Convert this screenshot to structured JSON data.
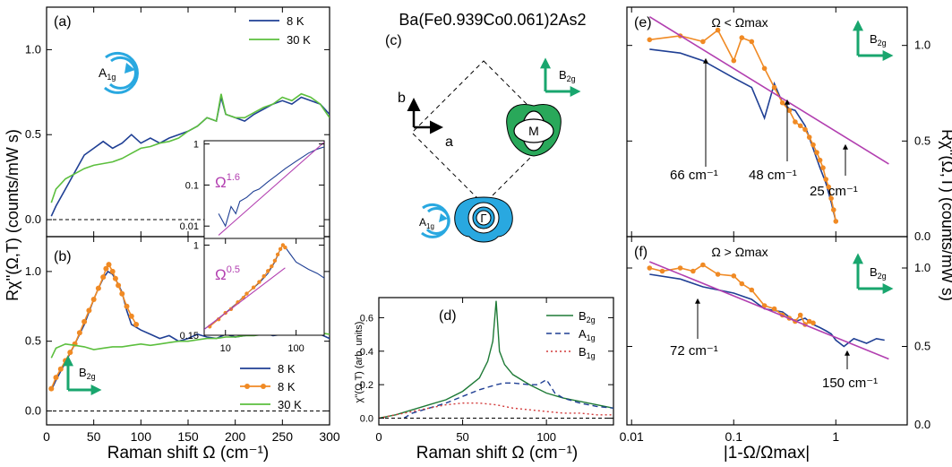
{
  "figure": {
    "compound": "Ba(Fe0.939Co0.061)2As2",
    "xlabel_left": "Raman shift Ω (cm⁻¹)",
    "xlabel_mid": "Raman shift Ω (cm⁻¹)",
    "xlabel_right": "|1-Ω/Ωmax|",
    "ylabel_left": "Rχ''(Ω,T) (counts/mW s)",
    "ylabel_right": "Rχ''(Ω,T) (counts/mW s)",
    "ylabel_d": "χ''(Ω,T) (arb. units)",
    "panel_labels": {
      "a": "(a)",
      "b": "(b)",
      "c": "(c)",
      "d": "(d)",
      "e": "(e)",
      "f": "(f)"
    },
    "sym": {
      "A1g": "A1g",
      "B2g": "B2g",
      "B1g": "B1g"
    },
    "lattice": {
      "a": "a",
      "b": "b",
      "Gamma": "Γ",
      "M": "M"
    },
    "inset_powers": {
      "upper": "Ω^1.6",
      "lower": "Ω^0.5"
    },
    "panel_e_condition": "Ω < Ωmax",
    "panel_f_condition": "Ω > Ωmax",
    "annotations_e": [
      "66 cm⁻¹",
      "48 cm⁻¹",
      "25 cm⁻¹"
    ],
    "annotations_f": [
      "72 cm⁻¹",
      "150 cm⁻¹"
    ]
  },
  "colors": {
    "blue": "#1f3f94",
    "green": "#5cbf3e",
    "orange": "#f08a24",
    "magenta": "#b23fb0",
    "teal": "#19a66e",
    "cyan": "#29a8e0",
    "dgreen": "#1e7a36",
    "red": "#d23a3a"
  },
  "chart_data": [
    {
      "id": "a",
      "type": "line",
      "xlim": [
        0,
        300
      ],
      "ylim": [
        -0.1,
        1.25
      ],
      "yticks": [
        0.0,
        0.5,
        1.0
      ],
      "series": [
        {
          "name": "8 K",
          "color": "blue",
          "x": [
            5,
            10,
            20,
            30,
            40,
            50,
            60,
            70,
            80,
            90,
            100,
            110,
            120,
            130,
            140,
            150,
            160,
            170,
            180,
            185,
            190,
            200,
            210,
            220,
            230,
            240,
            250,
            260,
            270,
            280,
            290,
            300
          ],
          "y": [
            0.02,
            0.08,
            0.18,
            0.28,
            0.38,
            0.42,
            0.46,
            0.42,
            0.45,
            0.5,
            0.45,
            0.48,
            0.45,
            0.48,
            0.5,
            0.52,
            0.55,
            0.6,
            0.58,
            0.72,
            0.62,
            0.6,
            0.58,
            0.62,
            0.65,
            0.68,
            0.7,
            0.68,
            0.72,
            0.7,
            0.68,
            0.62
          ]
        },
        {
          "name": "30 K",
          "color": "green",
          "x": [
            5,
            10,
            20,
            30,
            40,
            50,
            60,
            70,
            80,
            90,
            100,
            110,
            120,
            130,
            140,
            150,
            160,
            170,
            180,
            185,
            190,
            200,
            210,
            220,
            230,
            240,
            250,
            260,
            270,
            280,
            290,
            300
          ],
          "y": [
            0.1,
            0.18,
            0.24,
            0.27,
            0.3,
            0.32,
            0.33,
            0.34,
            0.36,
            0.39,
            0.42,
            0.43,
            0.45,
            0.46,
            0.48,
            0.52,
            0.55,
            0.6,
            0.58,
            0.74,
            0.62,
            0.6,
            0.6,
            0.63,
            0.66,
            0.68,
            0.72,
            0.7,
            0.74,
            0.72,
            0.68,
            0.6
          ]
        }
      ]
    },
    {
      "id": "b",
      "type": "line",
      "xlim": [
        0,
        300
      ],
      "ylim": [
        -0.1,
        1.25
      ],
      "xticks": [
        0,
        50,
        100,
        150,
        200,
        250,
        300
      ],
      "yticks": [
        0.0,
        0.5,
        1.0
      ],
      "series": [
        {
          "name": "8 K",
          "color": "blue",
          "x": [
            5,
            10,
            20,
            30,
            40,
            50,
            55,
            60,
            65,
            70,
            75,
            80,
            85,
            90,
            100,
            110,
            120,
            130,
            140,
            150,
            160,
            170,
            180,
            190,
            200,
            210,
            220,
            230,
            240,
            250,
            260,
            270,
            280,
            290,
            300
          ],
          "y": [
            0.15,
            0.22,
            0.35,
            0.48,
            0.62,
            0.8,
            0.88,
            0.95,
            1.0,
            0.98,
            0.92,
            0.85,
            0.72,
            0.62,
            0.58,
            0.55,
            0.52,
            0.54,
            0.5,
            0.52,
            0.55,
            0.53,
            0.52,
            0.55,
            0.53,
            0.54,
            0.55,
            0.56,
            0.54,
            0.55,
            0.56,
            0.58,
            0.56,
            0.55,
            0.52
          ]
        },
        {
          "name": "8 K",
          "color": "orange",
          "markers": true,
          "x": [
            5,
            10,
            15,
            20,
            25,
            30,
            35,
            40,
            45,
            50,
            55,
            60,
            63,
            66,
            70,
            73,
            76,
            80,
            85,
            90,
            95
          ],
          "y": [
            0.16,
            0.24,
            0.3,
            0.36,
            0.42,
            0.48,
            0.56,
            0.64,
            0.72,
            0.8,
            0.88,
            0.96,
            1.02,
            1.05,
            1.0,
            0.95,
            0.9,
            0.84,
            0.75,
            0.68,
            0.62
          ]
        },
        {
          "name": "30 K",
          "color": "green",
          "x": [
            5,
            10,
            20,
            30,
            40,
            50,
            60,
            70,
            80,
            90,
            100,
            110,
            120,
            130,
            140,
            150,
            160,
            170,
            180,
            190,
            200,
            210,
            220,
            230,
            240,
            250,
            260,
            270,
            280,
            290,
            300
          ],
          "y": [
            0.38,
            0.45,
            0.48,
            0.47,
            0.46,
            0.44,
            0.45,
            0.46,
            0.46,
            0.47,
            0.48,
            0.47,
            0.48,
            0.49,
            0.5,
            0.5,
            0.51,
            0.52,
            0.52,
            0.53,
            0.53,
            0.54,
            0.54,
            0.55,
            0.55,
            0.56,
            0.56,
            0.58,
            0.57,
            0.56,
            0.55
          ]
        }
      ]
    },
    {
      "id": "d",
      "type": "line",
      "xlim": [
        0,
        140
      ],
      "ylim": [
        -0.04,
        0.72
      ],
      "xticks": [
        0,
        50,
        100
      ],
      "yticks": [
        0.0,
        0.2,
        0.4,
        0.6
      ],
      "series": [
        {
          "name": "B2g",
          "color": "dgreen",
          "x": [
            0,
            10,
            20,
            30,
            40,
            50,
            60,
            65,
            68,
            70,
            72,
            75,
            80,
            90,
            100,
            110,
            120,
            130,
            140
          ],
          "y": [
            0.0,
            0.02,
            0.05,
            0.08,
            0.11,
            0.16,
            0.24,
            0.34,
            0.46,
            0.7,
            0.4,
            0.32,
            0.26,
            0.2,
            0.15,
            0.12,
            0.1,
            0.08,
            0.06
          ]
        },
        {
          "name": "A1g",
          "color": "blue",
          "dash": true,
          "x": [
            15,
            20,
            30,
            40,
            50,
            60,
            70,
            75,
            80,
            90,
            95,
            100,
            102,
            105,
            110,
            120,
            130,
            140
          ],
          "y": [
            0.0,
            0.03,
            0.06,
            0.09,
            0.13,
            0.17,
            0.2,
            0.21,
            0.21,
            0.2,
            0.2,
            0.23,
            0.2,
            0.15,
            0.12,
            0.09,
            0.07,
            0.06
          ]
        },
        {
          "name": "B1g",
          "color": "red",
          "dot": true,
          "x": [
            0,
            10,
            20,
            30,
            40,
            50,
            60,
            70,
            80,
            90,
            100,
            110,
            120,
            130,
            140
          ],
          "y": [
            0.0,
            0.02,
            0.04,
            0.06,
            0.08,
            0.09,
            0.09,
            0.08,
            0.06,
            0.05,
            0.04,
            0.03,
            0.03,
            0.02,
            0.02
          ]
        }
      ]
    },
    {
      "id": "e",
      "type": "line",
      "xscale": "log",
      "xlim": [
        0.009,
        5
      ],
      "ylim": [
        0,
        1.2
      ],
      "yticks": [
        0.0,
        0.5,
        1.0
      ],
      "series": [
        {
          "name": "blue",
          "color": "blue",
          "x": [
            0.015,
            0.03,
            0.05,
            0.1,
            0.15,
            0.2,
            0.25,
            0.3,
            0.35,
            0.4,
            0.5,
            0.6,
            0.7,
            0.8,
            0.9,
            1.0
          ],
          "y": [
            0.98,
            0.96,
            0.92,
            0.83,
            0.78,
            0.62,
            0.8,
            0.7,
            0.67,
            0.66,
            0.58,
            0.46,
            0.36,
            0.28,
            0.18,
            0.08
          ]
        },
        {
          "name": "orange",
          "color": "orange",
          "markers": true,
          "x": [
            0.015,
            0.03,
            0.05,
            0.07,
            0.1,
            0.12,
            0.15,
            0.2,
            0.25,
            0.3,
            0.35,
            0.4,
            0.45,
            0.5,
            0.55,
            0.6,
            0.65,
            0.7,
            0.75,
            0.8,
            0.85,
            0.9,
            0.95,
            1.0
          ],
          "y": [
            1.03,
            1.05,
            1.02,
            1.08,
            0.92,
            1.04,
            1.02,
            0.88,
            0.78,
            0.7,
            0.66,
            0.6,
            0.58,
            0.56,
            0.52,
            0.48,
            0.44,
            0.4,
            0.36,
            0.3,
            0.26,
            0.2,
            0.14,
            0.08
          ]
        },
        {
          "name": "fit",
          "color": "magenta",
          "x": [
            0.015,
            3.3
          ],
          "y": [
            1.15,
            0.38
          ]
        }
      ]
    },
    {
      "id": "f",
      "type": "line",
      "xscale": "log",
      "xlim": [
        0.009,
        5
      ],
      "ylim": [
        0,
        1.2
      ],
      "xticks": [
        0.01,
        0.1,
        1
      ],
      "yticks": [
        0.5,
        1.0
      ],
      "series": [
        {
          "name": "blue",
          "color": "blue",
          "x": [
            0.015,
            0.03,
            0.05,
            0.1,
            0.15,
            0.2,
            0.3,
            0.4,
            0.5,
            0.6,
            0.7,
            0.8,
            0.9,
            1.0,
            1.2,
            1.5,
            2,
            2.5,
            3.0
          ],
          "y": [
            0.96,
            0.93,
            0.88,
            0.84,
            0.8,
            0.74,
            0.72,
            0.66,
            0.68,
            0.64,
            0.62,
            0.6,
            0.58,
            0.54,
            0.5,
            0.55,
            0.52,
            0.55,
            0.54
          ]
        },
        {
          "name": "orange",
          "color": "orange",
          "markers": true,
          "x": [
            0.015,
            0.02,
            0.03,
            0.04,
            0.05,
            0.07,
            0.1,
            0.12,
            0.15,
            0.2,
            0.25,
            0.3,
            0.35,
            0.4,
            0.45,
            0.5,
            0.55,
            0.6
          ],
          "y": [
            1.0,
            0.98,
            1.0,
            0.98,
            1.02,
            0.96,
            0.95,
            0.9,
            0.86,
            0.76,
            0.74,
            0.7,
            0.68,
            0.66,
            0.7,
            0.64,
            0.66,
            0.65
          ]
        },
        {
          "name": "fit",
          "color": "magenta",
          "x": [
            0.015,
            3.3
          ],
          "y": [
            1.04,
            0.42
          ]
        }
      ]
    },
    {
      "id": "inset_upper",
      "type": "line",
      "xscale": "log",
      "yscale": "log",
      "xlim": [
        5,
        250
      ],
      "ylim": [
        0.005,
        1.2
      ],
      "yticks": [
        0.01,
        0.1,
        1
      ],
      "series": [
        {
          "name": "data",
          "color": "blue",
          "x": [
            8,
            10,
            12,
            14,
            16,
            20,
            25,
            30,
            40,
            50,
            70,
            100,
            150,
            200,
            250
          ],
          "y": [
            0.02,
            0.01,
            0.03,
            0.02,
            0.04,
            0.05,
            0.07,
            0.08,
            0.12,
            0.16,
            0.25,
            0.38,
            0.6,
            0.75,
            0.85
          ]
        },
        {
          "name": "fit",
          "color": "magenta",
          "x": [
            8,
            250
          ],
          "y": [
            0.006,
            1.1
          ]
        }
      ]
    },
    {
      "id": "inset_lower",
      "type": "line",
      "xscale": "log",
      "yscale": "log",
      "xlim": [
        5,
        250
      ],
      "ylim": [
        0.15,
        1.15
      ],
      "xticks": [
        10,
        100
      ],
      "yticks": [
        0.15,
        1
      ],
      "series": [
        {
          "name": "blue",
          "color": "blue",
          "x": [
            5,
            7,
            10,
            15,
            20,
            30,
            40,
            50,
            60,
            65,
            70,
            80,
            100,
            150,
            200,
            250
          ],
          "y": [
            0.17,
            0.2,
            0.24,
            0.3,
            0.36,
            0.45,
            0.55,
            0.7,
            0.92,
            1.0,
            0.96,
            0.85,
            0.7,
            0.6,
            0.55,
            0.5
          ]
        },
        {
          "name": "orange",
          "color": "orange",
          "markers": true,
          "x": [
            6,
            8,
            10,
            12,
            15,
            18,
            20,
            25,
            30,
            35,
            40,
            45,
            50,
            55,
            60,
            65,
            70
          ],
          "y": [
            0.18,
            0.21,
            0.24,
            0.26,
            0.3,
            0.33,
            0.36,
            0.41,
            0.46,
            0.52,
            0.58,
            0.64,
            0.72,
            0.82,
            0.92,
            1.0,
            0.95
          ]
        },
        {
          "name": "fit",
          "color": "magenta",
          "x": [
            5,
            70
          ],
          "y": [
            0.17,
            0.62
          ]
        }
      ]
    }
  ]
}
